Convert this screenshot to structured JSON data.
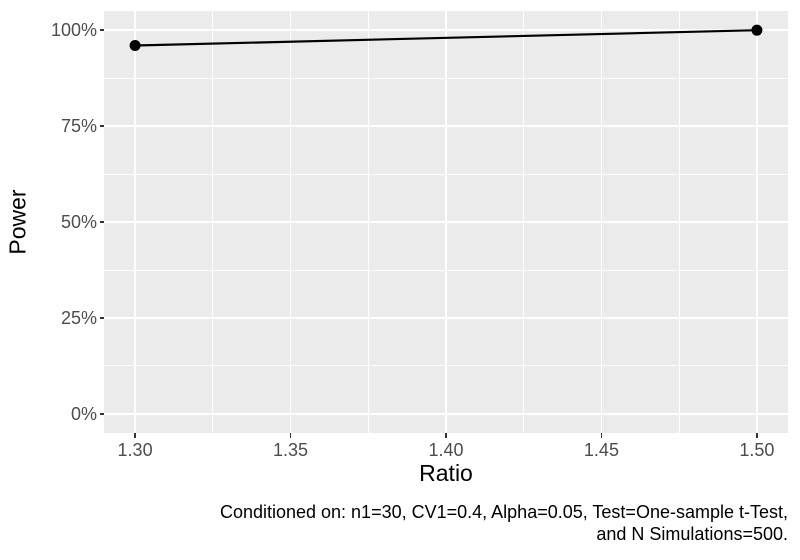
{
  "chart_data": {
    "type": "line",
    "title": "",
    "xlabel": "Ratio",
    "ylabel": "Power",
    "x": [
      1.3,
      1.5
    ],
    "series": [
      {
        "name": "Power",
        "values": [
          0.96,
          1.0
        ]
      }
    ],
    "x_tick_labels": [
      "1.30",
      "1.35",
      "1.40",
      "1.45",
      "1.50"
    ],
    "x_tick_values": [
      1.3,
      1.35,
      1.4,
      1.45,
      1.5
    ],
    "y_tick_labels": [
      "0%",
      "25%",
      "50%",
      "75%",
      "100%"
    ],
    "y_tick_values": [
      0,
      0.25,
      0.5,
      0.75,
      1.0
    ],
    "x_minor_values": [
      1.325,
      1.375,
      1.425,
      1.475
    ],
    "y_minor_values": [
      0.125,
      0.375,
      0.625,
      0.875
    ],
    "xlim": [
      1.29,
      1.51
    ],
    "ylim": [
      -0.05,
      1.05
    ],
    "grid": "major+minor",
    "legend_position": "none",
    "panel_bg": "#EBEBEB",
    "grid_color": "#FFFFFF",
    "line_color": "#000000",
    "point_color": "#000000",
    "tick_color": "#333333",
    "tick_label_color": "#4D4D4D",
    "axis_title_color": "#000000"
  },
  "caption": {
    "line1": "Conditioned on: n1=30, CV1=0.4, Alpha=0.05, Test=One-sample t-Test,",
    "line2": "and N Simulations=500."
  }
}
